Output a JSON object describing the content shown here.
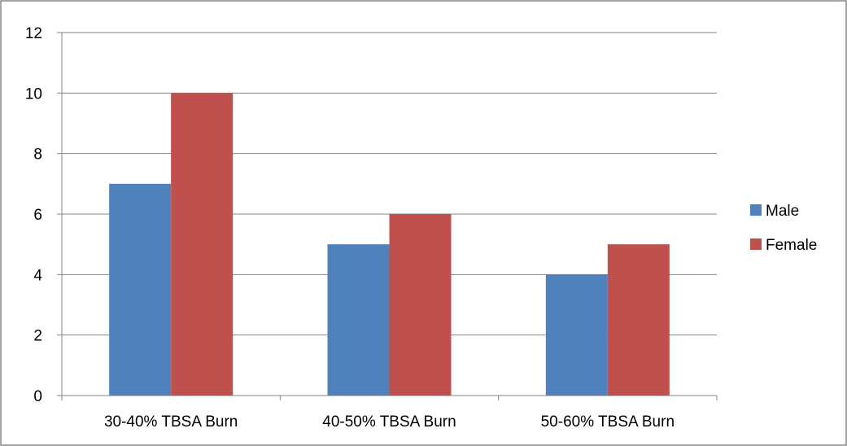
{
  "chart_data": {
    "type": "bar",
    "categories": [
      "30-40% TBSA Burn",
      "40-50% TBSA Burn",
      "50-60% TBSA Burn"
    ],
    "series": [
      {
        "name": "Male",
        "values": [
          7,
          5,
          4
        ],
        "color": "#4F81BD"
      },
      {
        "name": "Female",
        "values": [
          10,
          6,
          5
        ],
        "color": "#C0504D"
      }
    ],
    "ylim": [
      0,
      12
    ],
    "yticks": [
      0,
      2,
      4,
      6,
      8,
      10,
      12
    ],
    "grid": true,
    "legend_position": "right",
    "title": "",
    "xlabel": "",
    "ylabel": ""
  }
}
